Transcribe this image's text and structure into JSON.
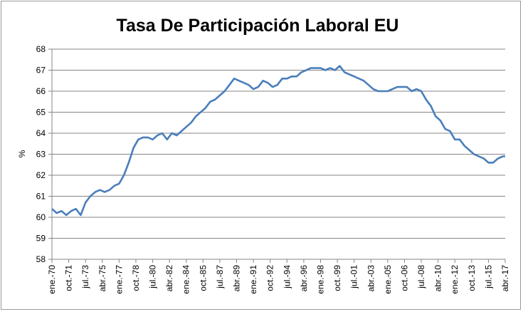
{
  "chart_data": {
    "type": "line",
    "title": "Tasa De Participación Laboral EU",
    "xlabel": "",
    "ylabel": "%",
    "ylim": [
      58,
      68
    ],
    "yticks": [
      "58",
      "59",
      "60",
      "61",
      "62",
      "63",
      "64",
      "65",
      "66",
      "67",
      "68"
    ],
    "grid": true,
    "legend": "none",
    "line_color": "#4a7ebb",
    "x_tick_labels": [
      "ene.-70",
      "oct.-71",
      "jul.-73",
      "abr.-75",
      "ene.-77",
      "oct.-78",
      "jul.-80",
      "abr.-82",
      "ene.-84",
      "oct.-85",
      "jul.-87",
      "abr.-89",
      "ene.-91",
      "oct.-92",
      "jul.-94",
      "abr.-96",
      "ene.-98",
      "oct.-99",
      "jul.-01",
      "abr.-03",
      "ene.-05",
      "oct.-06",
      "jul.-08",
      "abr.-10",
      "ene.-12",
      "oct.-13",
      "jul.-15",
      "abr.-17"
    ],
    "series": [
      {
        "x": [
          "1970-01",
          "1970-07",
          "1971-01",
          "1971-07",
          "1972-01",
          "1972-07",
          "1973-01",
          "1973-07",
          "1974-01",
          "1974-07",
          "1975-01",
          "1975-07",
          "1976-01",
          "1976-07",
          "1977-01",
          "1977-07",
          "1978-01",
          "1978-07",
          "1979-01",
          "1979-07",
          "1980-01",
          "1980-07",
          "1981-01",
          "1981-07",
          "1982-01",
          "1982-07",
          "1983-01",
          "1983-07",
          "1984-01",
          "1984-07",
          "1985-01",
          "1985-07",
          "1986-01",
          "1986-07",
          "1987-01",
          "1987-07",
          "1988-01",
          "1988-07",
          "1989-01",
          "1989-07",
          "1990-01",
          "1990-07",
          "1991-01",
          "1991-07",
          "1992-01",
          "1992-07",
          "1993-01",
          "1993-07",
          "1994-01",
          "1994-07",
          "1995-01",
          "1995-07",
          "1996-01",
          "1996-07",
          "1997-01",
          "1997-07",
          "1998-01",
          "1998-07",
          "1999-01",
          "1999-07",
          "2000-01",
          "2000-07",
          "2001-01",
          "2001-07",
          "2002-01",
          "2002-07",
          "2003-01",
          "2003-07",
          "2004-01",
          "2004-07",
          "2005-01",
          "2005-07",
          "2006-01",
          "2006-07",
          "2007-01",
          "2007-07",
          "2008-01",
          "2008-07",
          "2009-01",
          "2009-07",
          "2010-01",
          "2010-07",
          "2011-01",
          "2011-07",
          "2012-01",
          "2012-07",
          "2013-01",
          "2013-07",
          "2014-01",
          "2014-07",
          "2015-01",
          "2015-07",
          "2016-01",
          "2016-07",
          "2017-01",
          "2017-04"
        ],
        "y": [
          60.4,
          60.2,
          60.3,
          60.1,
          60.3,
          60.4,
          60.1,
          60.7,
          61.0,
          61.2,
          61.3,
          61.2,
          61.3,
          61.5,
          61.6,
          62.0,
          62.6,
          63.3,
          63.7,
          63.8,
          63.8,
          63.7,
          63.9,
          64.0,
          63.7,
          64.0,
          63.9,
          64.1,
          64.3,
          64.5,
          64.8,
          65.0,
          65.2,
          65.5,
          65.6,
          65.8,
          66.0,
          66.3,
          66.6,
          66.5,
          66.4,
          66.3,
          66.1,
          66.2,
          66.5,
          66.4,
          66.2,
          66.3,
          66.6,
          66.6,
          66.7,
          66.7,
          66.9,
          67.0,
          67.1,
          67.1,
          67.1,
          67.0,
          67.1,
          67.0,
          67.2,
          66.9,
          66.8,
          66.7,
          66.6,
          66.5,
          66.3,
          66.1,
          66.0,
          66.0,
          66.0,
          66.1,
          66.2,
          66.2,
          66.2,
          66.0,
          66.1,
          66.0,
          65.6,
          65.3,
          64.8,
          64.6,
          64.2,
          64.1,
          63.7,
          63.7,
          63.4,
          63.2,
          63.0,
          62.9,
          62.8,
          62.6,
          62.6,
          62.8,
          62.9,
          62.9
        ]
      }
    ]
  }
}
